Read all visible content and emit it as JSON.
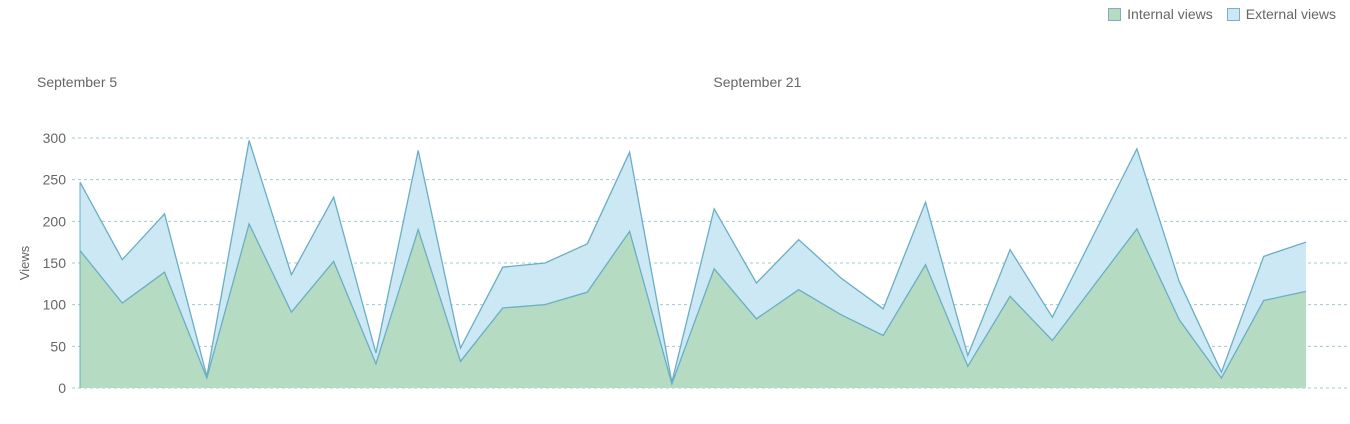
{
  "chart_data": {
    "type": "area",
    "stacked": true,
    "ylabel": "Views",
    "ylim": [
      0,
      300
    ],
    "yticks": [
      0,
      50,
      100,
      150,
      200,
      250,
      300
    ],
    "grid": true,
    "legend_position": "top-right",
    "date_labels": [
      "September 5",
      "September 21"
    ],
    "x": [
      1,
      2,
      3,
      4,
      5,
      6,
      7,
      8,
      9,
      10,
      11,
      12,
      13,
      14,
      15,
      16,
      17,
      18,
      19,
      20,
      21,
      22,
      23,
      24,
      25,
      26,
      27,
      28,
      29,
      30
    ],
    "series": [
      {
        "name": "Internal views",
        "color": "#b6dbc3",
        "values": [
          165,
          102,
          139,
          12,
          197,
          91,
          152,
          29,
          190,
          32,
          96,
          100,
          115,
          188,
          5,
          143,
          83,
          118,
          88,
          63,
          148,
          26,
          110,
          57,
          124,
          191,
          82,
          12,
          105,
          116
        ]
      },
      {
        "name": "External views",
        "color": "#cbe8f4",
        "values": [
          82,
          52,
          70,
          2,
          100,
          45,
          77,
          13,
          95,
          16,
          49,
          50,
          58,
          95,
          2,
          72,
          43,
          60,
          44,
          32,
          75,
          13,
          56,
          28,
          62,
          96,
          46,
          7,
          53,
          59
        ]
      }
    ],
    "line_color": "#6aaec4"
  }
}
